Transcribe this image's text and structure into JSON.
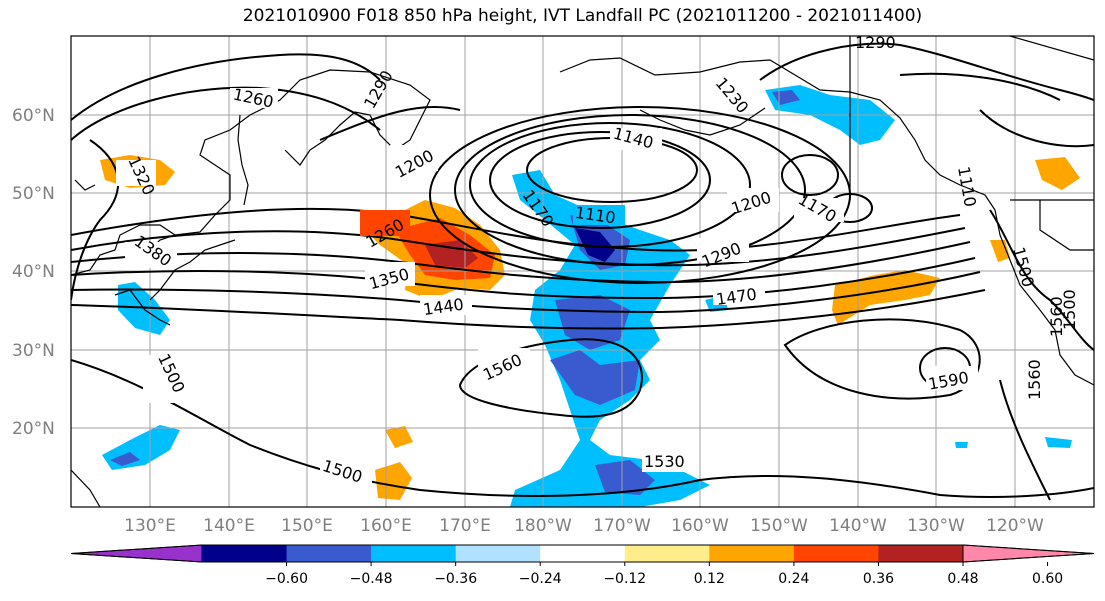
{
  "title": "2021010900 F018 850 hPa height, IVT Landfall PC (2021011200 - 2021011400)",
  "lat_labels": [
    "60°N",
    "50°N",
    "40°N",
    "30°N",
    "20°N"
  ],
  "lon_labels": [
    "130°E",
    "140°E",
    "150°E",
    "160°E",
    "170°E",
    "180°W",
    "170°W",
    "160°W",
    "150°W",
    "140°W",
    "130°W",
    "120°W"
  ],
  "contour_labels": [
    "1260",
    "1290",
    "1290",
    "1230",
    "1320",
    "1200",
    "1140",
    "1110",
    "1170",
    "1200",
    "1170",
    "1110",
    "1260",
    "1380",
    "1350",
    "1290",
    "1440",
    "1470",
    "1560",
    "1500",
    "1500",
    "1530",
    "1500",
    "1590",
    "1560",
    "1560",
    "1500"
  ],
  "colorbar": {
    "labels": [
      "−0.60",
      "−0.48",
      "−0.36",
      "−0.24",
      "−0.12",
      "0.12",
      "0.24",
      "0.36",
      "0.48",
      "0.60"
    ],
    "colors": [
      "#9932CC",
      "#00008B",
      "#3A5BCF",
      "#00BFFF",
      "#B0E2FF",
      "#FFFFFF",
      "#FFEC8B",
      "#FFA500",
      "#FF4500",
      "#B22222",
      "#FF88AA"
    ]
  }
}
